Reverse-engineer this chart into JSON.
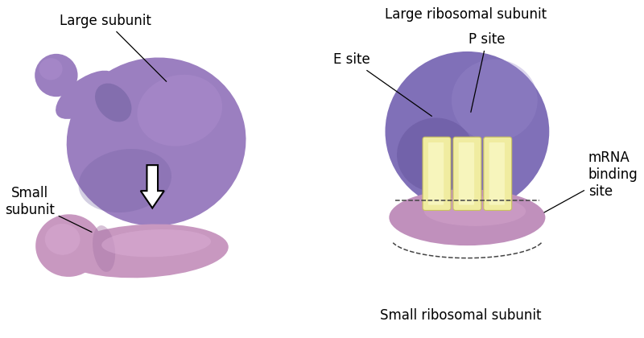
{
  "background_color": "#ffffff",
  "large_su_base": "#9B7FC0",
  "large_su_light": "#B090D0",
  "large_su_dark": "#7060A0",
  "small_su_base": "#C898C0",
  "small_su_light": "#DDB0D8",
  "small_su_dark": "#A878A8",
  "rib_large_base": "#8070B8",
  "rib_large_dark": "#5A4890",
  "rib_small_base": "#C090BC",
  "rib_small_light": "#D8A8D0",
  "trna_color": "#F0ECA0",
  "trna_edge": "#C8C060",
  "labels": {
    "large_subunit": "Large subunit",
    "small_subunit": "Small\nsubunit",
    "large_ribosomal": "Large ribosomal subunit",
    "small_ribosomal": "Small ribosomal subunit",
    "e_site": "E site",
    "p_site": "P site",
    "mrna": "mRNA\nbinding\nsite"
  },
  "arrow_fill": "#ffffff",
  "arrow_edge": "#000000"
}
